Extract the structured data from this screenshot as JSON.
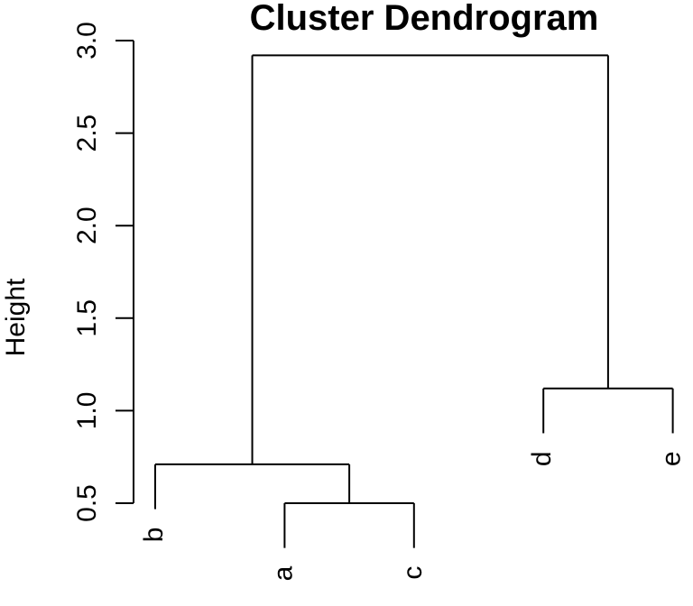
{
  "chart_data": {
    "type": "dendrogram",
    "title": "Cluster Dendrogram",
    "ylabel": "Height",
    "xlabel": "",
    "background": "#ffffff",
    "line_color": "#000000",
    "text_color": "#000000",
    "grid": false,
    "legend": null,
    "leaves": [
      "b",
      "a",
      "c",
      "d",
      "e"
    ],
    "merges": [
      {
        "id": "n1",
        "children": [
          "a",
          "c"
        ],
        "height": 0.5
      },
      {
        "id": "n2",
        "children": [
          "b",
          "n1"
        ],
        "height": 0.71
      },
      {
        "id": "n3",
        "children": [
          "d",
          "e"
        ],
        "height": 1.12
      },
      {
        "id": "n4",
        "children": [
          "n2",
          "n3"
        ],
        "height": 2.92
      }
    ],
    "hang": 0.1,
    "ylim": [
      0.5,
      3.0
    ],
    "yticks": [
      {
        "value": 0.5,
        "label": "0.5"
      },
      {
        "value": 1.0,
        "label": "1.0"
      },
      {
        "value": 1.5,
        "label": "1.5"
      },
      {
        "value": 2.0,
        "label": "2.0"
      },
      {
        "value": 2.5,
        "label": "2.5"
      },
      {
        "value": 3.0,
        "label": "3.0"
      }
    ]
  }
}
